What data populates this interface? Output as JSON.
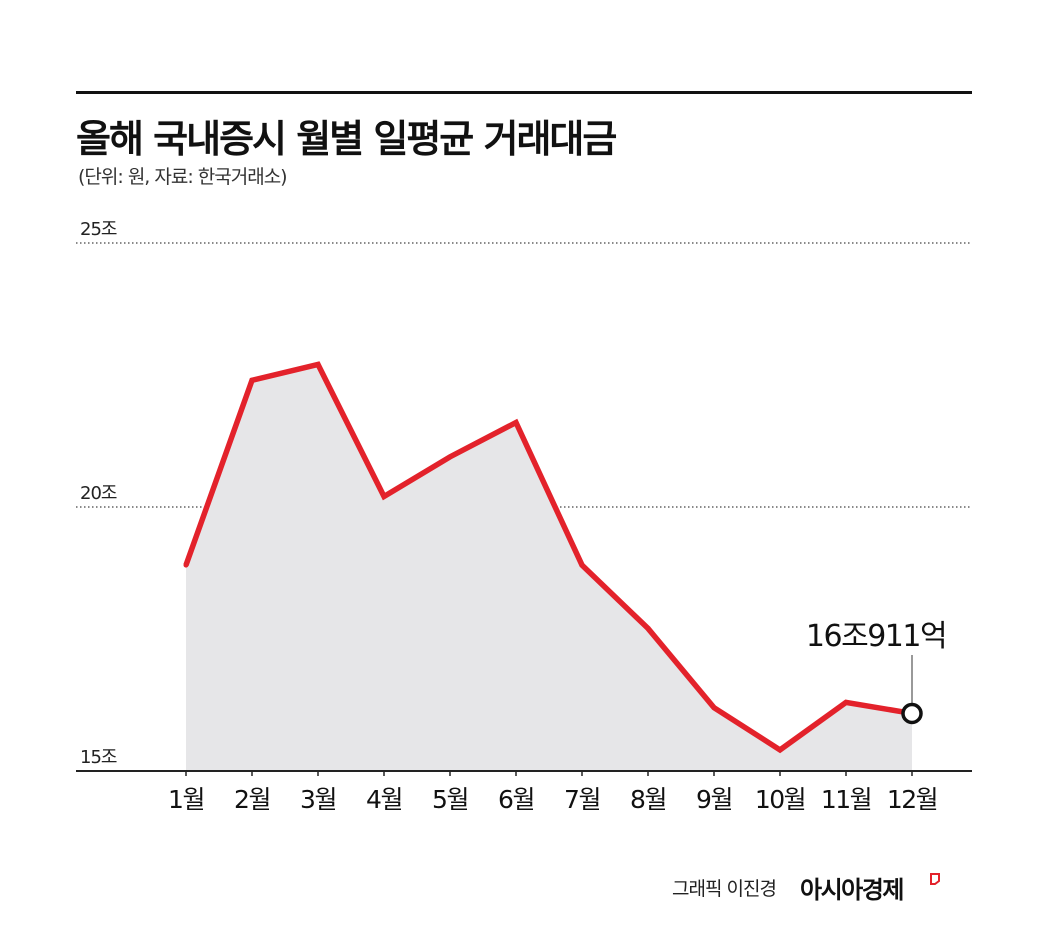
{
  "title": "올해 국내증시 월별 일평균 거래대금",
  "subtitle": "(단위: 원, 자료: 한국거래소)",
  "credit": "그래픽 이진경",
  "brand": "아시아경제",
  "colors": {
    "line": "#e3222b",
    "area": "#e6e6e8",
    "axis": "#222222",
    "grid": "#444444"
  },
  "chart_data": {
    "type": "area",
    "categories": [
      "1월",
      "2월",
      "3월",
      "4월",
      "5월",
      "6월",
      "7월",
      "8월",
      "9월",
      "10월",
      "11월",
      "12월"
    ],
    "values": [
      18.9,
      22.4,
      22.7,
      20.2,
      20.95,
      21.6,
      18.9,
      17.7,
      16.2,
      15.4,
      16.3,
      16.09
    ],
    "ylim": [
      15,
      25
    ],
    "yticks": [
      {
        "value": 15,
        "label": "15조"
      },
      {
        "value": 20,
        "label": "20조"
      },
      {
        "value": 25,
        "label": "25조"
      }
    ],
    "annotation": {
      "index": 11,
      "text": "16조911억"
    },
    "grid": true
  }
}
